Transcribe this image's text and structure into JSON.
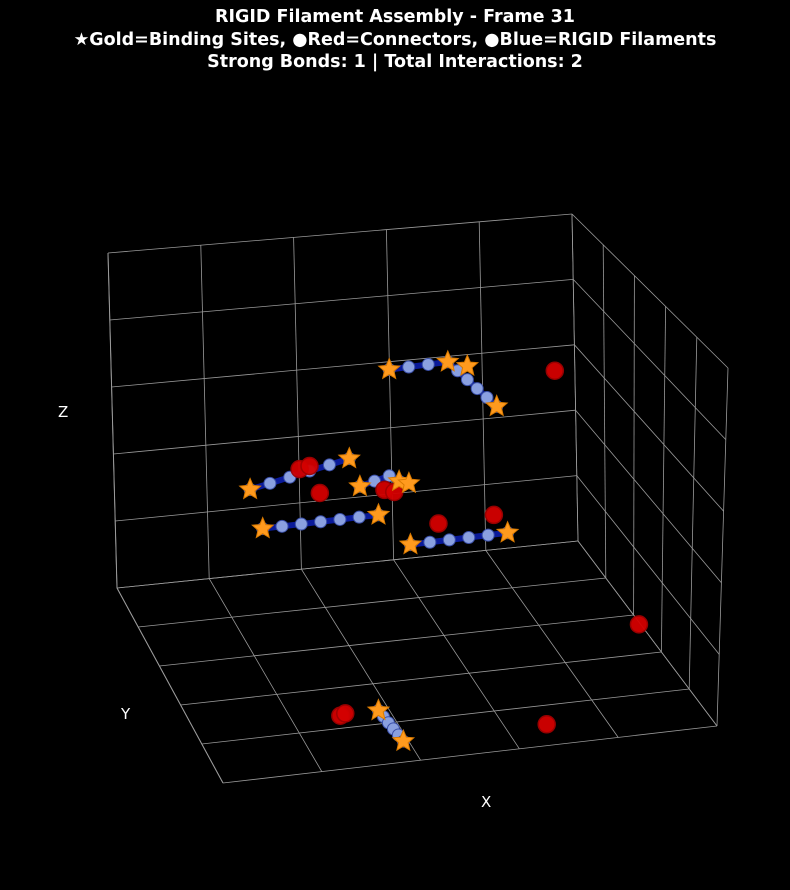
{
  "title_lines": [
    "RIGID Filament Assembly - Frame 31",
    "★Gold=Binding Sites, ●Red=Connectors, ●Blue=RIGID Filaments",
    "Strong Bonds: 1 | Total Interactions: 2"
  ],
  "axis_labels": {
    "x": "X",
    "y": "Y",
    "z": "Z"
  },
  "colors": {
    "background": "#000000",
    "grid": "#9a9a9a",
    "binding_site": "#ff9a1e",
    "binding_site_edge": "#d97a00",
    "connector": "#d40000",
    "connector_edge": "#a00000",
    "filament_bead": "#8aa0e0",
    "filament_bead_edge": "#3a4fa8",
    "filament_line": "#0a1a9a"
  },
  "chart_data": {
    "type": "scatter3d",
    "title": "RIGID Filament Assembly - Frame 31",
    "subtitle": "★Gold=Binding Sites, ●Red=Connectors, ●Blue=RIGID Filaments",
    "annotation": "Strong Bonds: 1 | Total Interactions: 2",
    "xlabel": "X",
    "ylabel": "Y",
    "zlabel": "Z",
    "xlim": [
      0,
      10
    ],
    "ylim": [
      0,
      10
    ],
    "zlim": [
      0,
      10
    ],
    "grid": true,
    "view": {
      "elev": 18,
      "azim": -80
    },
    "filaments": [
      {
        "beads": [
          [
            1.2,
            2.5,
            7.2
          ],
          [
            1.6,
            2.5,
            7.3
          ],
          [
            2.0,
            2.5,
            7.4
          ],
          [
            2.4,
            2.5,
            7.5
          ],
          [
            2.8,
            2.5,
            7.6
          ],
          [
            3.2,
            2.5,
            7.7
          ]
        ]
      },
      {
        "beads": [
          [
            4.6,
            4.8,
            8.8
          ],
          [
            5.0,
            4.8,
            8.8
          ],
          [
            5.4,
            4.8,
            8.8
          ],
          [
            5.8,
            4.8,
            8.8
          ],
          [
            6.0,
            4.8,
            8.5
          ],
          [
            6.2,
            4.8,
            8.2
          ],
          [
            6.4,
            4.8,
            7.9
          ],
          [
            6.6,
            4.8,
            7.6
          ],
          [
            6.8,
            4.8,
            7.3
          ]
        ]
      },
      {
        "beads": [
          [
            3.7,
            3.7,
            6.1
          ],
          [
            4.0,
            3.7,
            6.2
          ],
          [
            4.3,
            3.7,
            6.3
          ],
          [
            4.5,
            3.7,
            6.1
          ]
        ]
      },
      {
        "beads": [
          [
            2.0,
            5.0,
            4.4
          ],
          [
            2.4,
            5.0,
            4.4
          ],
          [
            2.8,
            5.0,
            4.4
          ],
          [
            3.2,
            5.0,
            4.4
          ],
          [
            3.6,
            5.0,
            4.4
          ],
          [
            4.0,
            5.0,
            4.4
          ],
          [
            4.4,
            5.0,
            4.4
          ]
        ]
      },
      {
        "beads": [
          [
            4.8,
            4.0,
            4.0
          ],
          [
            5.2,
            4.0,
            4.0
          ],
          [
            5.6,
            4.0,
            4.0
          ],
          [
            6.0,
            4.0,
            4.0
          ],
          [
            6.4,
            4.0,
            4.0
          ],
          [
            6.8,
            4.0,
            4.0
          ]
        ]
      },
      {
        "beads": [
          [
            3.2,
            0.2,
            1.5
          ],
          [
            3.3,
            0.2,
            1.3
          ],
          [
            3.4,
            0.2,
            1.1
          ],
          [
            3.5,
            0.2,
            0.9
          ],
          [
            3.6,
            0.2,
            0.7
          ],
          [
            3.7,
            0.2,
            0.5
          ]
        ]
      }
    ],
    "binding_sites": [
      [
        1.2,
        2.5,
        7.2
      ],
      [
        3.2,
        2.5,
        7.7
      ],
      [
        4.6,
        4.8,
        8.8
      ],
      [
        5.8,
        4.8,
        8.8
      ],
      [
        6.2,
        4.8,
        8.6
      ],
      [
        6.8,
        4.8,
        7.3
      ],
      [
        3.7,
        3.7,
        6.1
      ],
      [
        4.5,
        3.7,
        6.1
      ],
      [
        4.7,
        3.7,
        6.0
      ],
      [
        2.0,
        5.0,
        4.4
      ],
      [
        4.4,
        5.0,
        4.4
      ],
      [
        4.8,
        4.0,
        4.0
      ],
      [
        6.8,
        4.0,
        4.0
      ],
      [
        3.2,
        0.2,
        1.5
      ],
      [
        3.7,
        0.2,
        0.5
      ]
    ],
    "connectors": [
      [
        2.2,
        2.5,
        7.6
      ],
      [
        2.4,
        2.5,
        7.65
      ],
      [
        2.6,
        2.5,
        6.8
      ],
      [
        4.2,
        3.7,
        5.9
      ],
      [
        4.4,
        3.7,
        5.8
      ],
      [
        5.3,
        3.7,
        4.7
      ],
      [
        6.6,
        4.3,
        4.4
      ],
      [
        8.5,
        6.5,
        7.2
      ],
      [
        8.8,
        1.5,
        2.3
      ],
      [
        2.5,
        0.5,
        1.3
      ],
      [
        2.6,
        0.5,
        1.35
      ],
      [
        6.6,
        0.2,
        0.5
      ]
    ]
  }
}
